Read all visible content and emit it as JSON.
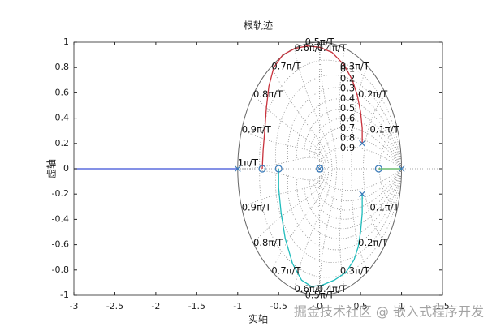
{
  "chart_data": {
    "type": "rootlocus",
    "title": "根轨迹",
    "xlabel": "实轴",
    "ylabel": "虚轴",
    "xlim": [
      -3,
      1.5
    ],
    "ylim": [
      -1,
      1
    ],
    "xticks": [
      -3,
      -2.5,
      -2,
      -1.5,
      -1,
      -0.5,
      0,
      0.5,
      1,
      1.5
    ],
    "yticks": [
      -1,
      -0.8,
      -0.6,
      -0.4,
      -0.2,
      0,
      0.2,
      0.4,
      0.6,
      0.8,
      1
    ],
    "series": [
      {
        "color": "#3b4fd8",
        "x": [
          -1,
          -3
        ],
        "y": [
          0,
          0
        ]
      },
      {
        "color": "#c8323c",
        "x": [
          0.52,
          0.52,
          0.5,
          0.46,
          0.4,
          0.3,
          0.15,
          0,
          -0.15,
          -0.3,
          -0.45,
          -0.56,
          -0.62,
          -0.65,
          -0.67,
          -0.69,
          -0.7
        ],
        "y": [
          0.2,
          0.32,
          0.45,
          0.58,
          0.7,
          0.82,
          0.92,
          0.96,
          0.97,
          0.95,
          0.9,
          0.8,
          0.65,
          0.48,
          0.3,
          0.14,
          0
        ]
      },
      {
        "color": "#1fbcbc",
        "x": [
          0.52,
          0.52,
          0.5,
          0.47,
          0.42,
          0.32,
          0.18,
          0.03,
          -0.1,
          -0.22,
          -0.33,
          -0.42,
          -0.47,
          -0.5,
          -0.5
        ],
        "y": [
          -0.2,
          -0.35,
          -0.5,
          -0.62,
          -0.72,
          -0.82,
          -0.88,
          -0.92,
          -0.93,
          -0.88,
          -0.75,
          -0.55,
          -0.35,
          -0.15,
          0
        ]
      },
      {
        "color": "#4caf50",
        "x": [
          1,
          0.72
        ],
        "y": [
          0,
          0
        ]
      }
    ],
    "poles": {
      "color": "#3a7ab8",
      "x": [
        -1,
        0,
        0.52,
        0.52,
        1
      ],
      "y": [
        0,
        0,
        0.2,
        -0.2,
        0
      ]
    },
    "zeros": {
      "color": "#3a7ab8",
      "x": [
        -0.7,
        -0.5,
        0,
        0.72
      ],
      "y": [
        0,
        0,
        0,
        0
      ]
    },
    "zgrid": {
      "damping": [
        0.1,
        0.2,
        0.3,
        0.4,
        0.5,
        0.6,
        0.7,
        0.8,
        0.9
      ],
      "frequencies": [
        {
          "value": 0.1,
          "label": "0.1π/T"
        },
        {
          "value": 0.2,
          "label": "0.2π/T"
        },
        {
          "value": 0.3,
          "label": "0.3π/T"
        },
        {
          "value": 0.4,
          "label": "0.4π/T"
        },
        {
          "value": 0.5,
          "label": "0.5π/T"
        },
        {
          "value": 0.6,
          "label": "0.6π/T"
        },
        {
          "value": 0.7,
          "label": "0.7π/T"
        },
        {
          "value": 0.8,
          "label": "0.8π/T"
        },
        {
          "value": 0.9,
          "label": "0.9π/T"
        },
        {
          "value": 1,
          "label": "1π/T"
        }
      ]
    },
    "watermark": "掘金技术社区 @ 嵌入式程序开发"
  }
}
